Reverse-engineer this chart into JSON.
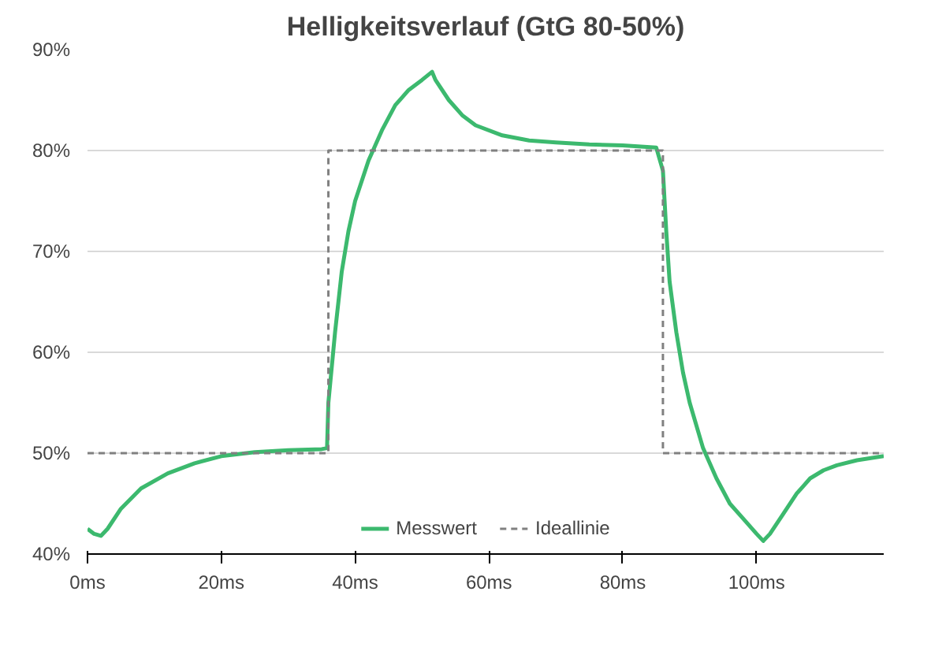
{
  "chart_data": {
    "type": "line",
    "title": "Helligkeitsverlauf (GtG 80-50%)",
    "xlim": [
      0,
      119
    ],
    "xticks": [
      {
        "value": 0,
        "label": "0ms"
      },
      {
        "value": 20,
        "label": "20ms"
      },
      {
        "value": 40,
        "label": "40ms"
      },
      {
        "value": 60,
        "label": "60ms"
      },
      {
        "value": 80,
        "label": "80ms"
      },
      {
        "value": 100,
        "label": "100ms"
      }
    ],
    "ylim": [
      40,
      90
    ],
    "yticks": [
      {
        "value": 40,
        "label": "40%"
      },
      {
        "value": 50,
        "label": "50%"
      },
      {
        "value": 60,
        "label": "60%"
      },
      {
        "value": 70,
        "label": "70%"
      },
      {
        "value": 80,
        "label": "80%"
      },
      {
        "value": 90,
        "label": "90%"
      }
    ],
    "grid": "y",
    "legend": "bottom",
    "series": [
      {
        "name": "Messwert",
        "color": "#3cb96e",
        "line_style": "solid",
        "x": [
          0,
          1,
          2,
          3,
          5,
          8,
          12,
          16,
          20,
          25,
          30,
          35,
          35.8,
          36,
          37,
          38,
          39,
          40,
          42,
          44,
          46,
          48,
          50,
          51.5,
          52,
          54,
          56,
          58,
          62,
          66,
          70,
          75,
          80,
          85,
          86,
          86.5,
          87,
          88,
          89,
          90,
          92,
          94,
          96,
          98,
          100,
          101,
          102,
          104,
          106,
          108,
          110,
          112,
          115,
          119
        ],
        "values": [
          42.5,
          42,
          41.8,
          42.5,
          44.5,
          46.5,
          48,
          49,
          49.7,
          50.1,
          50.3,
          50.4,
          50.5,
          55,
          62,
          68,
          72,
          75,
          79,
          82,
          84.5,
          86,
          87,
          87.8,
          87,
          85,
          83.5,
          82.5,
          81.5,
          81,
          80.8,
          80.6,
          80.5,
          80.3,
          78,
          72,
          67,
          62,
          58,
          55,
          50.5,
          47.5,
          45,
          43.5,
          42,
          41.3,
          42,
          44,
          46,
          47.5,
          48.3,
          48.8,
          49.3,
          49.7
        ]
      },
      {
        "name": "Ideallinie",
        "color": "#808080",
        "line_style": "dashed",
        "x": [
          0,
          36,
          36,
          86,
          86,
          119
        ],
        "values": [
          50,
          50,
          80,
          80,
          50,
          50
        ]
      }
    ]
  }
}
